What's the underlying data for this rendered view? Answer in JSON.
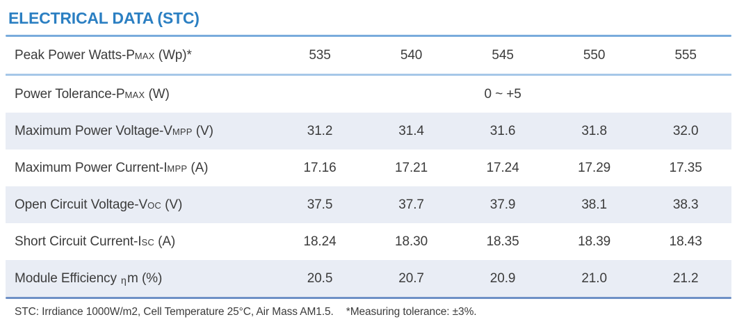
{
  "page": {
    "title": "ELECTRICAL DATA (STC)",
    "footer_note_conditions": "STC: Irrdiance 1000W/m2, Cell Temperature 25°C, Air Mass AM1.5.",
    "footer_note_tolerance": "*Measuring tolerance: ±3%."
  },
  "colors": {
    "title_blue": "#2b7fc2",
    "title_rule": "#79abdc",
    "row_rule_light": "#a6c7e8",
    "bottom_rule": "#6e90c6",
    "row_shade": "#e9edf5",
    "text_dark": "#3b3b3b"
  },
  "table": {
    "rows": [
      {
        "label": {
          "main": "Peak Power Watts-P",
          "sub": "MAX",
          "rest": " (Wp)*"
        },
        "values": [
          "535",
          "540",
          "545",
          "550",
          "555"
        ]
      },
      {
        "label": {
          "main": "Power Tolerance-P",
          "sub": "MAX",
          "rest": " (W)"
        },
        "merged_value": "0 ~ +5"
      },
      {
        "label": {
          "main": "Maximum Power Voltage-V",
          "sub": "MPP",
          "rest": " (V)"
        },
        "values": [
          "31.2",
          "31.4",
          "31.6",
          "31.8",
          "32.0"
        ]
      },
      {
        "label": {
          "main": "Maximum Power Current-I",
          "sub": "MPP",
          "rest": " (A)"
        },
        "values": [
          "17.16",
          "17.21",
          "17.24",
          "17.29",
          "17.35"
        ]
      },
      {
        "label": {
          "main": "Open Circuit Voltage-V",
          "sub": "OC",
          "rest": " (V)"
        },
        "values": [
          "37.5",
          "37.7",
          "37.9",
          "38.1",
          "38.3"
        ]
      },
      {
        "label": {
          "main": "Short Circuit Current-I",
          "sub": "SC",
          "rest": " (A)"
        },
        "values": [
          "18.24",
          "18.30",
          "18.35",
          "18.39",
          "18.43"
        ]
      },
      {
        "label": {
          "main": "Module Efficiency ",
          "sub": "η",
          "rest": "m (%)"
        },
        "values": [
          "20.5",
          "20.7",
          "20.9",
          "21.0",
          "21.2"
        ]
      }
    ]
  }
}
